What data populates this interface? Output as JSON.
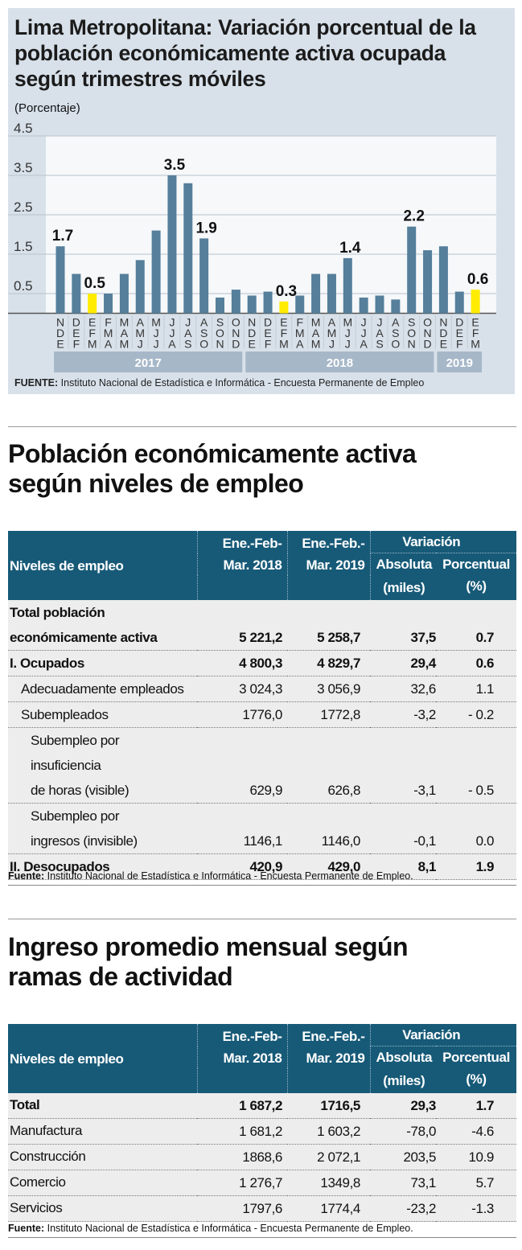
{
  "chart_data": {
    "type": "bar",
    "title": "Lima Metropolitana: Variación porcentual de la población económicamente activa ocupada según trimestres móviles",
    "ylabel": "(Porcentaje)",
    "ylim": [
      0,
      4.5
    ],
    "yticks": [
      "4.5",
      "3.5",
      "2.5",
      "1.5",
      "0.5"
    ],
    "grid": true,
    "categories": [
      "N D E",
      "D E F",
      "E F M",
      "F M A",
      "M A M",
      "A M J",
      "M J J",
      "J J A",
      "J A S",
      "A S O",
      "S O N",
      "O N D",
      "N D E",
      "D E F",
      "E F M",
      "F M A",
      "M A M",
      "A M J",
      "M J J",
      "J J A",
      "J A S",
      "A S O",
      "S O N",
      "O N D",
      "N D E",
      "D E F",
      "E F M"
    ],
    "values": [
      1.7,
      1.0,
      0.5,
      0.5,
      1.0,
      1.35,
      2.1,
      3.5,
      3.3,
      1.9,
      0.4,
      0.6,
      0.45,
      0.55,
      0.3,
      0.45,
      1.0,
      1.0,
      1.4,
      0.4,
      0.45,
      0.35,
      2.2,
      1.6,
      1.7,
      0.55,
      0.6
    ],
    "data_labels": {
      "0": "1.7",
      "2": "0.5",
      "7": "3.5",
      "9": "1.9",
      "14": "0.3",
      "18": "1.4",
      "22": "2.2",
      "26": "0.6"
    },
    "highlight_indices": [
      2,
      14,
      26
    ],
    "years": [
      {
        "label": "2017",
        "start": 0,
        "end": 11
      },
      {
        "label": "2018",
        "start": 12,
        "end": 23
      },
      {
        "label": "2019",
        "start": 24,
        "end": 26
      }
    ],
    "colors": {
      "bar": "#557f9b",
      "highlight": "#ffec00",
      "year_band": "#a6b7c8",
      "panel": "#d8e1ea"
    },
    "source_bold": "FUENTE:",
    "source": " Instituto Nacional de Estadística e Informática - Encuesta Permanente de Empleo"
  },
  "table1": {
    "heading": "Población económicamente activa según niveles de empleo",
    "headers": {
      "label": "Niveles de empleo",
      "c1a": "Ene.-Feb-",
      "c1b": "Mar. 2018",
      "c2a": "Ene.-Feb.-",
      "c2b": "Mar. 2019",
      "var": "Variación",
      "abs_a": "Absoluta",
      "abs_b": "(miles)",
      "pct_a": "Porcentual",
      "pct_b": "(%)"
    },
    "rows": [
      {
        "label1": "Total población",
        "label2": "económicamente activa",
        "v1": "5 221,2",
        "v2": "5 258,7",
        "abs": "37,5",
        "pct": "0.7"
      },
      {
        "label": "I. Ocupados",
        "v1": "4 800,3",
        "v2": "4 829,7",
        "abs": "29,4",
        "pct": "0.6"
      },
      {
        "label": "Adecuadamente empleados",
        "v1": "3 024,3",
        "v2": "3 056,9",
        "abs": "32,6",
        "pct": "1.1"
      },
      {
        "label": "Subempleados",
        "v1": "1776,0",
        "v2": "1772,8",
        "abs": "-3,2",
        "pct": "- 0.2"
      },
      {
        "label1": "Subempleo por insuficiencia",
        "label2": "de horas (visible)",
        "v1": "629,9",
        "v2": "626,8",
        "abs": "-3,1",
        "pct": "- 0.5"
      },
      {
        "label1": "Subempleo por",
        "label2": "ingresos (invisible)",
        "v1": "1146,1",
        "v2": "1146,0",
        "abs": "-0,1",
        "pct": "0.0"
      },
      {
        "label": "II. Desocupados",
        "v1": "420,9",
        "v2": "429,0",
        "abs": "8,1",
        "pct": "1.9"
      }
    ],
    "source_bold": "Fuente:",
    "source": " Instituto Nacional de Estadística e Informática - Encuesta Permanente de Empleo."
  },
  "table2": {
    "heading": "Ingreso promedio mensual según ramas de actividad",
    "headers": {
      "label": "Niveles de empleo",
      "c1a": "Ene.-Feb-",
      "c1b": "Mar. 2018",
      "c2a": "Ene.-Feb.-",
      "c2b": "Mar. 2019",
      "var": "Variación",
      "abs_a": "Absoluta",
      "abs_b": "(miles)",
      "pct_a": "Porcentual",
      "pct_b": "(%)"
    },
    "rows": [
      {
        "label": "Total",
        "v1": "1 687,2",
        "v2": "1716,5",
        "abs": "29,3",
        "pct": "1.7"
      },
      {
        "label": "Manufactura",
        "v1": "1 681,2",
        "v2": "1 603,2",
        "abs": "-78,0",
        "pct": "-4.6"
      },
      {
        "label": "Construcción",
        "v1": "1868,6",
        "v2": "2 072,1",
        "abs": "203,5",
        "pct": "10.9"
      },
      {
        "label": "Comercio",
        "v1": "1 276,7",
        "v2": "1349,8",
        "abs": "73,1",
        "pct": "5.7"
      },
      {
        "label": "Servicios",
        "v1": "1797,6",
        "v2": "1774,4",
        "abs": "-23,2",
        "pct": "-1.3"
      }
    ],
    "source_bold": "Fuente:",
    "source": " Instituto Nacional de Estadística e Informática - Encuesta Permanente de Empleo."
  }
}
